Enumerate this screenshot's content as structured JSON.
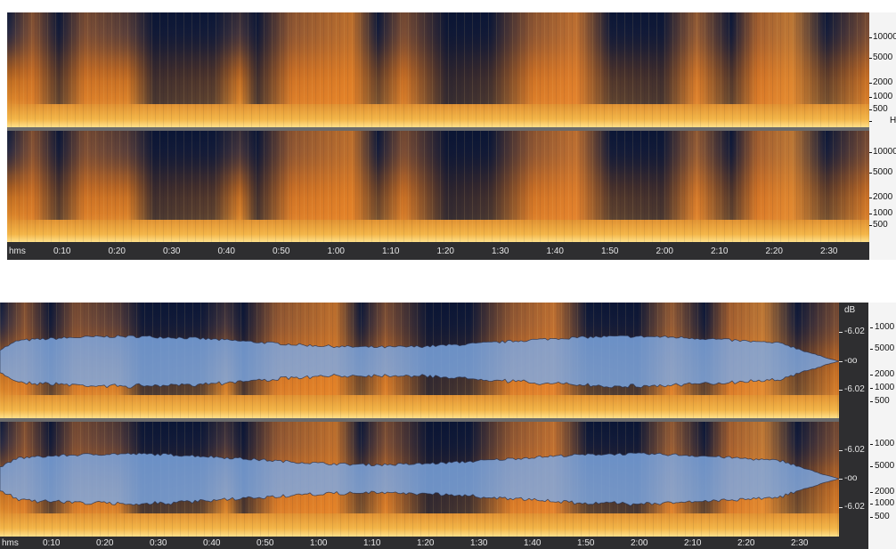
{
  "top_view": {
    "channel_1_freq_labels": [
      "10000",
      "5000",
      "2000",
      "1000",
      "500",
      "H"
    ],
    "channel_2_freq_labels": [
      "10000",
      "5000",
      "2000",
      "1000",
      "500"
    ],
    "time_labels": [
      "hms",
      "0:10",
      "0:20",
      "0:30",
      "0:40",
      "0:50",
      "1:00",
      "1:10",
      "1:20",
      "1:30",
      "1:40",
      "1:50",
      "2:00",
      "2:10",
      "2:20",
      "2:30"
    ]
  },
  "bottom_view": {
    "db_unit": "dB",
    "channel_1_db_labels": [
      "-6.02",
      "-oo",
      "-6.02"
    ],
    "channel_2_db_labels": [
      "-6.02",
      "-oo",
      "-6.02"
    ],
    "channel_1_freq_labels": [
      "1000",
      "5000",
      "2000",
      "1000",
      "500"
    ],
    "channel_2_freq_labels": [
      "1000",
      "5000",
      "2000",
      "1000",
      "500"
    ],
    "time_labels": [
      "hms",
      "0:10",
      "0:20",
      "0:30",
      "0:40",
      "0:50",
      "1:00",
      "1:10",
      "1:20",
      "1:30",
      "1:40",
      "1:50",
      "2:00",
      "2:10",
      "2:20",
      "2:30"
    ]
  }
}
